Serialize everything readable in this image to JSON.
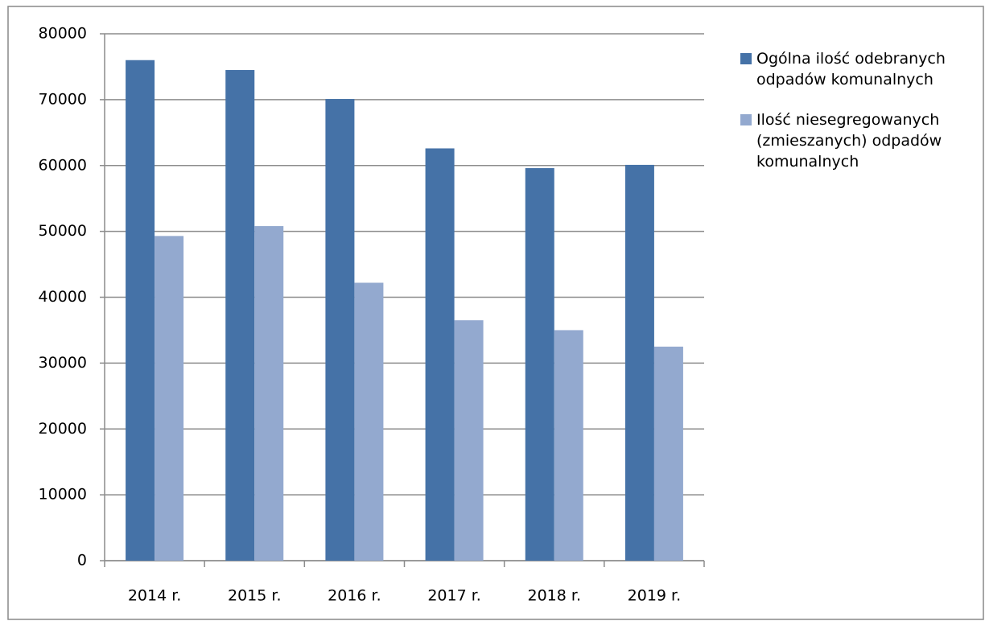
{
  "chart_data": {
    "type": "bar",
    "categories": [
      "2014 r.",
      "2015 r.",
      "2016 r.",
      "2017 r.",
      "2018 r.",
      "2019 r."
    ],
    "series": [
      {
        "name": "Ogólna ilość odebranych odpadów komunalnych",
        "color": "#4572a7",
        "values": [
          76000,
          74500,
          70100,
          62600,
          59600,
          60100
        ]
      },
      {
        "name": "Ilość niesegregowanych (zmieszanych) odpadów komunalnych",
        "color": "#93a9cf",
        "values": [
          49300,
          50800,
          42200,
          36500,
          35000,
          32500
        ]
      }
    ],
    "ylim": [
      0,
      80000
    ],
    "yticks": [
      0,
      10000,
      20000,
      30000,
      40000,
      50000,
      60000,
      70000,
      80000
    ],
    "grid": true,
    "legend": "right"
  }
}
